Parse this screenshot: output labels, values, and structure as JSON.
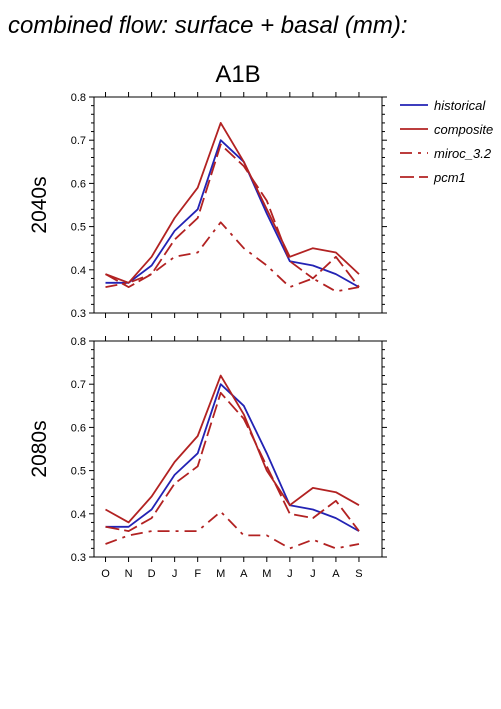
{
  "figure": {
    "title": "combined flow: surface + basal (mm):",
    "subtitle": "A1B"
  },
  "legend": {
    "placement": "right",
    "entries": [
      {
        "name": "historical",
        "color": "#2323b4",
        "dash": "solid"
      },
      {
        "name": "composite",
        "color": "#b22222",
        "dash": "solid"
      },
      {
        "name": "miroc_3.2",
        "color": "#b22222",
        "dash": "dashdot"
      },
      {
        "name": "pcm1",
        "color": "#b22222",
        "dash": "dashed"
      }
    ]
  },
  "chart_data": [
    {
      "type": "line",
      "panel_label": "2040s",
      "categories": [
        "O",
        "N",
        "D",
        "J",
        "F",
        "M",
        "A",
        "M",
        "J",
        "J",
        "A",
        "S"
      ],
      "ylim": [
        0.3,
        0.8
      ],
      "yticks": [
        "0.3",
        "0.4",
        "0.5",
        "0.6",
        "0.7",
        "0.8"
      ],
      "xlabel": "",
      "ylabel": "",
      "grid": false,
      "series": [
        {
          "name": "historical",
          "values": [
            0.37,
            0.37,
            0.41,
            0.49,
            0.54,
            0.7,
            0.65,
            0.53,
            0.42,
            0.41,
            0.39,
            0.36
          ]
        },
        {
          "name": "composite",
          "values": [
            0.39,
            0.37,
            0.43,
            0.52,
            0.59,
            0.74,
            0.65,
            0.54,
            0.43,
            0.45,
            0.44,
            0.39
          ]
        },
        {
          "name": "miroc_3.2",
          "values": [
            0.36,
            0.37,
            0.39,
            0.43,
            0.44,
            0.51,
            0.45,
            0.41,
            0.36,
            0.38,
            0.35,
            0.36
          ]
        },
        {
          "name": "pcm1",
          "values": [
            0.39,
            0.36,
            0.39,
            0.47,
            0.52,
            0.69,
            0.64,
            0.56,
            0.42,
            0.38,
            0.43,
            0.36
          ]
        }
      ]
    },
    {
      "type": "line",
      "panel_label": "2080s",
      "categories": [
        "O",
        "N",
        "D",
        "J",
        "F",
        "M",
        "A",
        "M",
        "J",
        "J",
        "A",
        "S"
      ],
      "ylim": [
        0.3,
        0.8
      ],
      "yticks": [
        "0.3",
        "0.4",
        "0.5",
        "0.6",
        "0.7",
        "0.8"
      ],
      "xlabel": "",
      "ylabel": "",
      "grid": false,
      "series": [
        {
          "name": "historical",
          "values": [
            0.37,
            0.37,
            0.41,
            0.49,
            0.54,
            0.7,
            0.65,
            0.54,
            0.42,
            0.41,
            0.39,
            0.36
          ]
        },
        {
          "name": "composite",
          "values": [
            0.41,
            0.38,
            0.44,
            0.52,
            0.58,
            0.72,
            0.63,
            0.5,
            0.42,
            0.46,
            0.45,
            0.42
          ]
        },
        {
          "name": "miroc_3.2",
          "values": [
            0.33,
            0.35,
            0.36,
            0.36,
            0.36,
            0.405,
            0.35,
            0.35,
            0.32,
            0.34,
            0.32,
            0.33
          ]
        },
        {
          "name": "pcm1",
          "values": [
            0.37,
            0.36,
            0.39,
            0.47,
            0.51,
            0.68,
            0.62,
            0.51,
            0.4,
            0.39,
            0.43,
            0.36
          ]
        }
      ]
    }
  ]
}
